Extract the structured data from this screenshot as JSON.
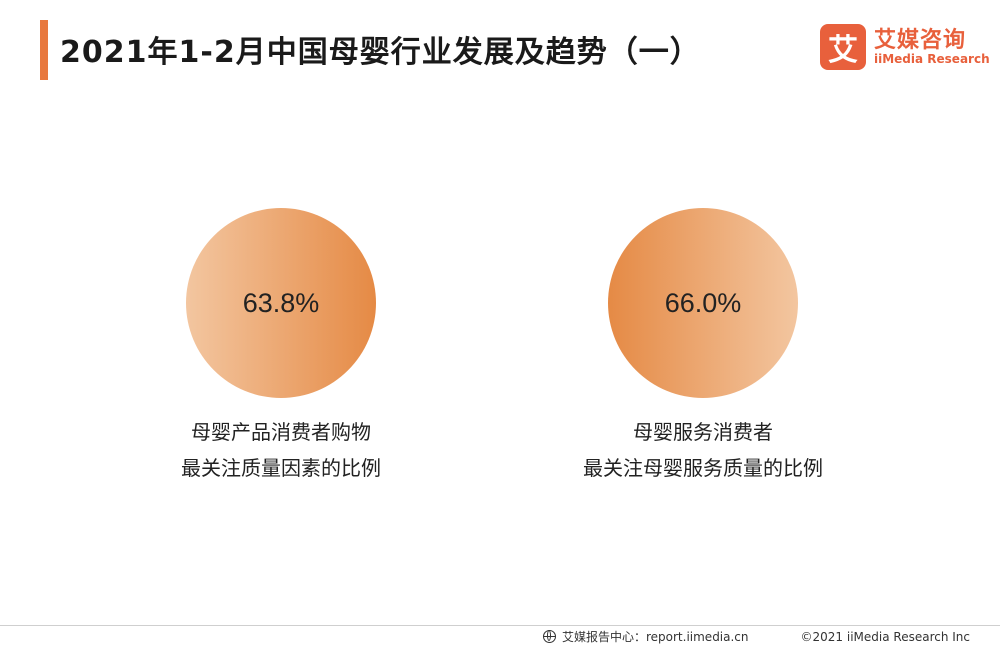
{
  "header": {
    "title": "2021年1-2月中国母婴行业发展及趋势（一）"
  },
  "logo": {
    "mark": "艾",
    "name_cn": "艾媒咨询",
    "name_en": "iiMedia Research"
  },
  "stats": [
    {
      "value": "63.8%",
      "label_line1": "母婴产品消费者购物",
      "label_line2": "最关注质量因素的比例"
    },
    {
      "value": "66.0%",
      "label_line1": "母婴服务消费者",
      "label_line2": "最关注母婴服务质量的比例"
    }
  ],
  "footer": {
    "source": "艾媒报告中心：report.iimedia.cn",
    "copyright": "©2021  iiMedia Research  Inc"
  },
  "colors": {
    "accent": "#e8793f",
    "brand": "#e8603c",
    "circle_light": "#f3c6a0",
    "circle_dark": "#e58a45"
  }
}
